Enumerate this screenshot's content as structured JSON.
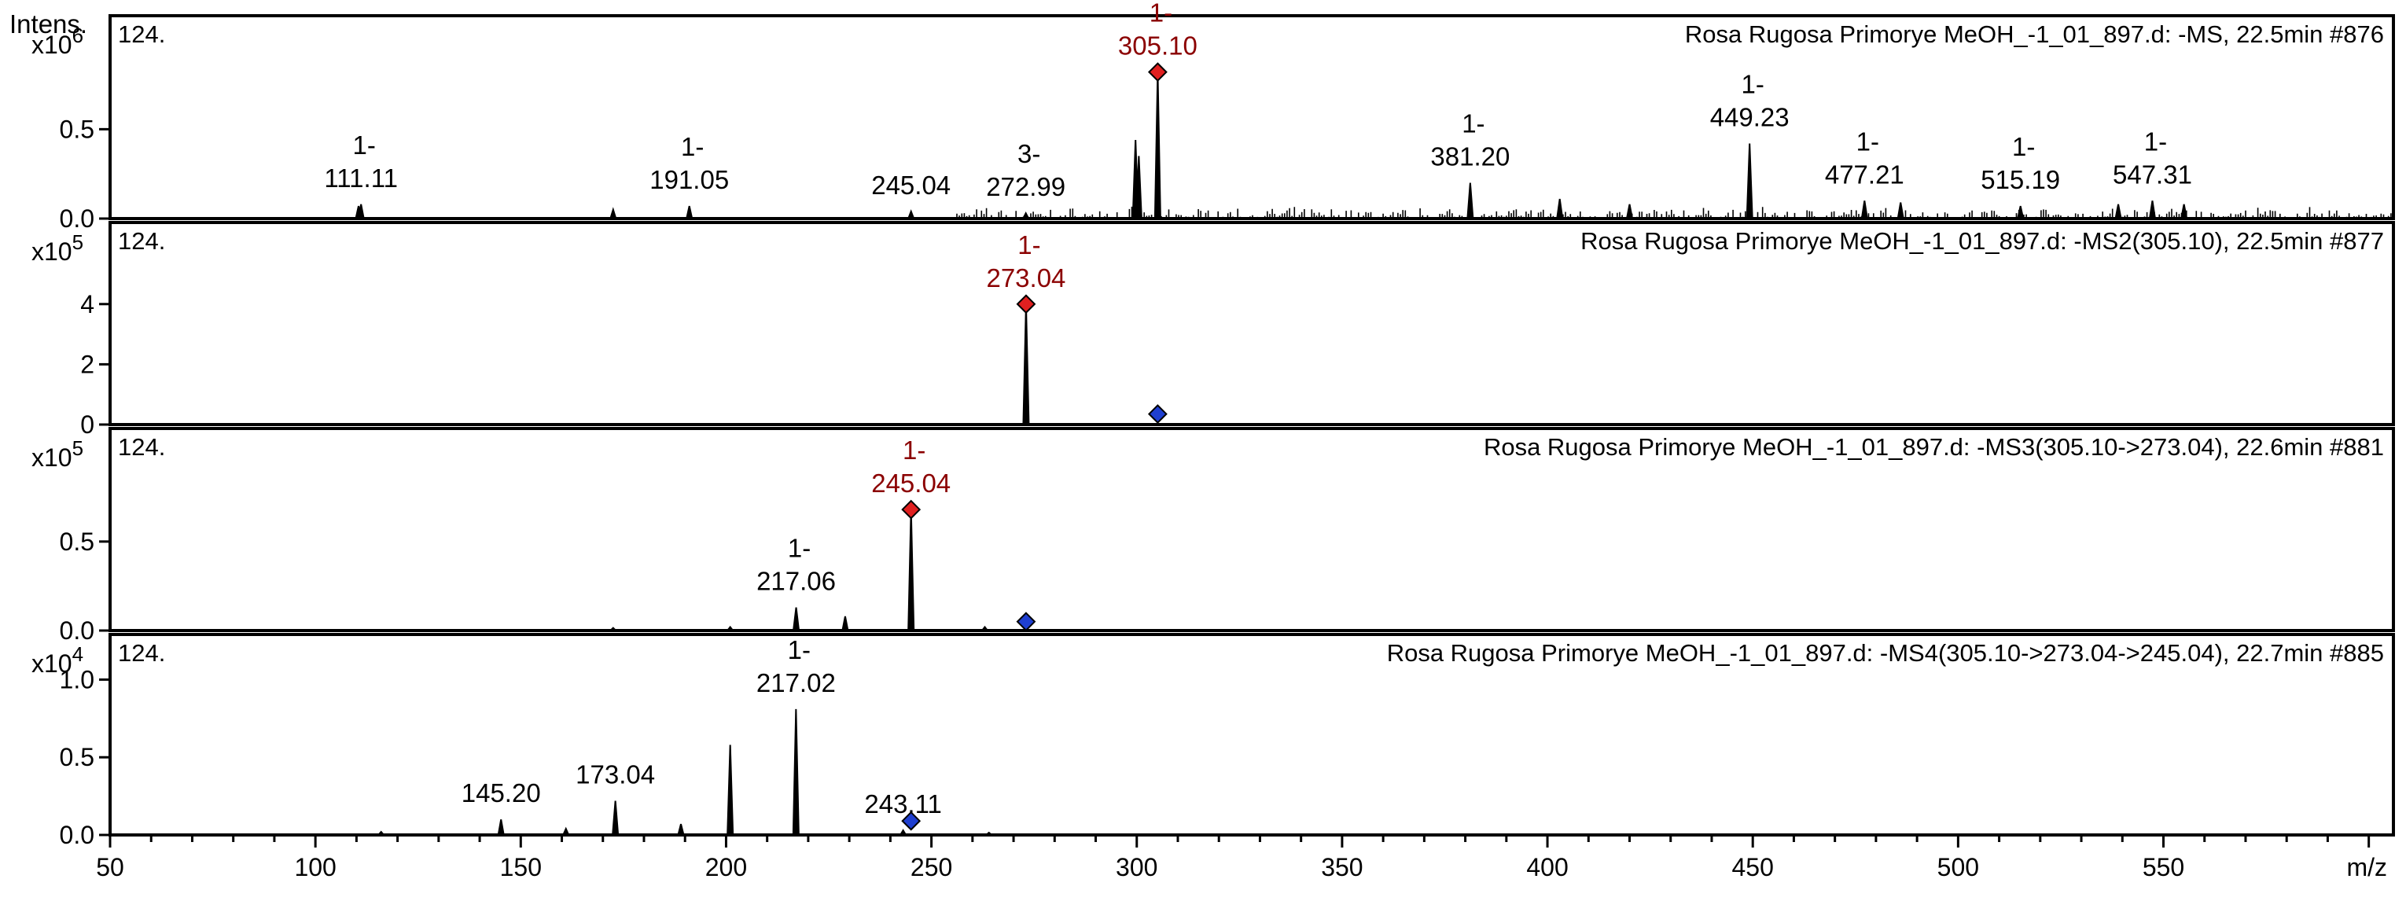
{
  "chart_data": {
    "type": "line",
    "x_axis": {
      "label": "m/z",
      "range": [
        50,
        606
      ],
      "ticks": [
        "50",
        "100",
        "150",
        "200",
        "250",
        "300",
        "350",
        "400",
        "450",
        "500",
        "550"
      ]
    },
    "y_axis_label": "Intens.",
    "panels": [
      {
        "id": "MS",
        "title": "Rosa Rugosa Primorye MeOH_-1_01_897.d: -MS, 22.5min #876",
        "intensity_cutoff": "124.",
        "y_exponent": "x10",
        "y_exponent_power": "6",
        "y_range": [
          0,
          1.1
        ],
        "y_ticks": [
          "0.0",
          "0.5"
        ],
        "peaks": [
          {
            "mz": 110.5,
            "i": 0.07
          },
          {
            "mz": 111.11,
            "i": 0.08
          },
          {
            "mz": 172.5,
            "i": 0.05
          },
          {
            "mz": 191.05,
            "i": 0.07
          },
          {
            "mz": 245.04,
            "i": 0.04
          },
          {
            "mz": 272.99,
            "i": 0.03
          },
          {
            "mz": 299.7,
            "i": 0.44
          },
          {
            "mz": 300.5,
            "i": 0.35
          },
          {
            "mz": 305.1,
            "i": 0.82
          },
          {
            "mz": 381.2,
            "i": 0.2
          },
          {
            "mz": 403.0,
            "i": 0.11
          },
          {
            "mz": 420.0,
            "i": 0.08
          },
          {
            "mz": 449.23,
            "i": 0.42
          },
          {
            "mz": 477.21,
            "i": 0.1
          },
          {
            "mz": 486.0,
            "i": 0.09
          },
          {
            "mz": 515.19,
            "i": 0.07
          },
          {
            "mz": 539.0,
            "i": 0.08
          },
          {
            "mz": 547.31,
            "i": 0.1
          },
          {
            "mz": 555.0,
            "i": 0.08
          }
        ],
        "noise": {
          "from": 255,
          "to": 606,
          "max": 0.07
        },
        "labels": [
          {
            "mz": 111.11,
            "charge": "1-",
            "value": "111.11",
            "highlight": false
          },
          {
            "mz": 191.05,
            "charge": "1-",
            "value": "191.05",
            "highlight": false
          },
          {
            "mz": 245.04,
            "charge": "",
            "value": "245.04",
            "highlight": false
          },
          {
            "mz": 272.99,
            "charge": "3-",
            "value": "272.99",
            "highlight": false
          },
          {
            "mz": 305.1,
            "charge": "1-",
            "value": "305.10",
            "highlight": true
          },
          {
            "mz": 381.2,
            "charge": "1-",
            "value": "381.20",
            "highlight": false
          },
          {
            "mz": 449.23,
            "charge": "1-",
            "value": "449.23",
            "highlight": false
          },
          {
            "mz": 477.21,
            "charge": "1-",
            "value": "477.21",
            "highlight": false
          },
          {
            "mz": 515.19,
            "charge": "1-",
            "value": "515.19",
            "highlight": false
          },
          {
            "mz": 547.31,
            "charge": "1-",
            "value": "547.31",
            "highlight": false
          }
        ],
        "markers": [
          {
            "mz": 305.1,
            "i": 0.82,
            "color": "#e02020"
          }
        ]
      },
      {
        "id": "MS2",
        "title": "Rosa Rugosa Primorye MeOH_-1_01_897.d: -MS2(305.10), 22.5min #877",
        "intensity_cutoff": "124.",
        "y_exponent": "x10",
        "y_exponent_power": "5",
        "y_range": [
          0,
          6.5
        ],
        "y_ticks": [
          "0",
          "2",
          "4"
        ],
        "peaks": [
          {
            "mz": 273.04,
            "i": 4.0
          }
        ],
        "noise": null,
        "labels": [
          {
            "mz": 273.04,
            "charge": "1-",
            "value": "273.04",
            "highlight": true
          }
        ],
        "markers": [
          {
            "mz": 273.04,
            "i": 4.0,
            "color": "#e02020"
          },
          {
            "mz": 305.1,
            "i": 0.35,
            "color": "#1f3fd0"
          }
        ]
      },
      {
        "id": "MS3",
        "title": "Rosa Rugosa Primorye MeOH_-1_01_897.d: -MS3(305.10->273.04), 22.6min #881",
        "intensity_cutoff": "124.",
        "y_exponent": "x10",
        "y_exponent_power": "5",
        "y_range": [
          0,
          1.1
        ],
        "y_ticks": [
          "0.0",
          "0.5"
        ],
        "peaks": [
          {
            "mz": 172.5,
            "i": 0.015
          },
          {
            "mz": 201.0,
            "i": 0.02
          },
          {
            "mz": 217.06,
            "i": 0.13
          },
          {
            "mz": 229.0,
            "i": 0.08
          },
          {
            "mz": 245.04,
            "i": 0.68
          },
          {
            "mz": 263.0,
            "i": 0.02
          }
        ],
        "noise": null,
        "labels": [
          {
            "mz": 217.06,
            "charge": "1-",
            "value": "217.06",
            "highlight": false
          },
          {
            "mz": 245.04,
            "charge": "1-",
            "value": "245.04",
            "highlight": true
          }
        ],
        "markers": [
          {
            "mz": 245.04,
            "i": 0.68,
            "color": "#e02020"
          },
          {
            "mz": 273.04,
            "i": 0.05,
            "color": "#1f3fd0"
          }
        ]
      },
      {
        "id": "MS4",
        "title": "Rosa Rugosa Primorye MeOH_-1_01_897.d: -MS4(305.10->273.04->245.04), 22.7min #885",
        "intensity_cutoff": "124.",
        "y_exponent": "x10",
        "y_exponent_power": "4",
        "y_range": [
          0,
          1.25
        ],
        "y_ticks": [
          "0.0",
          "0.5",
          "1.0"
        ],
        "peaks": [
          {
            "mz": 116.0,
            "i": 0.02
          },
          {
            "mz": 145.2,
            "i": 0.1
          },
          {
            "mz": 161.0,
            "i": 0.04
          },
          {
            "mz": 173.04,
            "i": 0.22
          },
          {
            "mz": 189.0,
            "i": 0.07
          },
          {
            "mz": 201.0,
            "i": 0.58
          },
          {
            "mz": 217.02,
            "i": 0.81
          },
          {
            "mz": 243.11,
            "i": 0.03
          },
          {
            "mz": 264.0,
            "i": 0.015
          }
        ],
        "noise": null,
        "labels": [
          {
            "mz": 145.2,
            "charge": "",
            "value": "145.20",
            "highlight": false
          },
          {
            "mz": 173.04,
            "charge": "",
            "value": "173.04",
            "highlight": false
          },
          {
            "mz": 217.02,
            "charge": "1-",
            "value": "217.02",
            "highlight": false
          },
          {
            "mz": 243.11,
            "charge": "",
            "value": "243.11",
            "highlight": false
          }
        ],
        "markers": [
          {
            "mz": 245.04,
            "i": 0.09,
            "color": "#1f3fd0"
          }
        ]
      }
    ]
  }
}
